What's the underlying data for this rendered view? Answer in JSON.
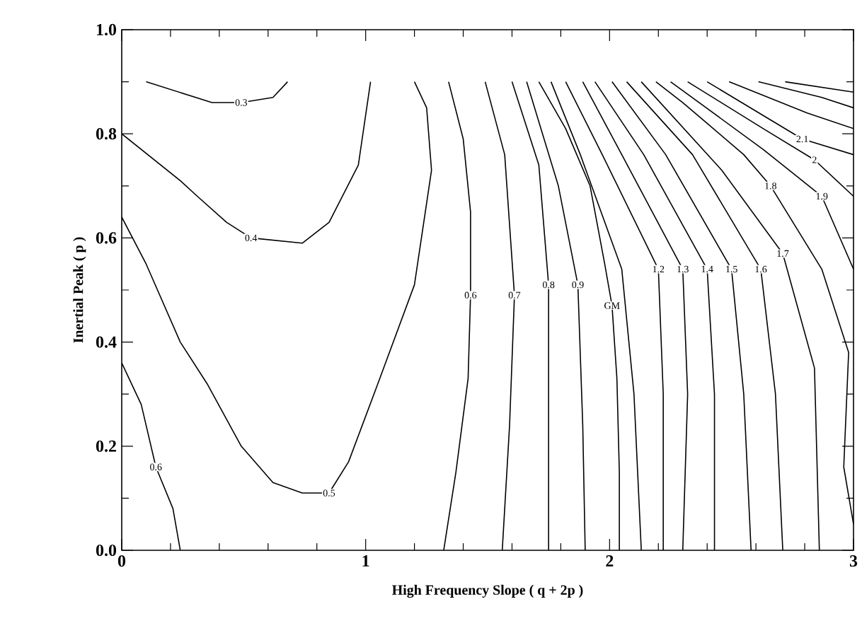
{
  "chart_data": {
    "type": "line",
    "xlabel": "High Frequency Slope ( q + 2p )",
    "ylabel": "Inertial Peak ( p )",
    "xlim": [
      0,
      3
    ],
    "ylim": [
      0,
      1
    ],
    "xticks": [
      0,
      1,
      2,
      3
    ],
    "yticks": [
      {
        "value": 0,
        "label": "0.0"
      },
      {
        "value": 0.2,
        "label": "0.2"
      },
      {
        "value": 0.4,
        "label": "0.4"
      },
      {
        "value": 0.6,
        "label": "0.6"
      },
      {
        "value": 0.8,
        "label": "0.8"
      },
      {
        "value": 1,
        "label": "1.0"
      }
    ],
    "grid": false,
    "legend": false,
    "marker": "none",
    "line_style": "solid",
    "series": [
      {
        "name": "0.3",
        "color": "#000000",
        "x": [
          0.1,
          0.37,
          0.49,
          0.62,
          0.68
        ],
        "values": [
          0.9,
          0.86,
          0.86,
          0.87,
          0.9
        ]
      },
      {
        "name": "0.4",
        "color": "#000000",
        "x": [
          0,
          0.24,
          0.31,
          0.43,
          0.53,
          0.74,
          0.85,
          0.97,
          1.02
        ],
        "values": [
          0.8,
          0.71,
          0.68,
          0.63,
          0.6,
          0.59,
          0.63,
          0.74,
          0.9
        ]
      },
      {
        "name": "0.5",
        "color": "#000000",
        "x": [
          0,
          0.1,
          0.24,
          0.35,
          0.49,
          0.62,
          0.74,
          0.85,
          0.93,
          1.05,
          1.2,
          1.27,
          1.25,
          1.2
        ],
        "values": [
          0.64,
          0.55,
          0.4,
          0.32,
          0.2,
          0.13,
          0.11,
          0.11,
          0.17,
          0.32,
          0.51,
          0.73,
          0.85,
          0.9
        ]
      },
      {
        "name": "0.6",
        "color": "#000000",
        "x": [
          0,
          0.08,
          0.14,
          0.21,
          0.24
        ],
        "values": [
          0.36,
          0.28,
          0.16,
          0.08,
          0
        ]
      },
      {
        "name": "0.6",
        "color": "#000000",
        "x": [
          1.34,
          1.4,
          1.43,
          1.43,
          1.42,
          1.37,
          1.32
        ],
        "values": [
          0.9,
          0.79,
          0.65,
          0.49,
          0.33,
          0.15,
          0
        ]
      },
      {
        "name": "0.7",
        "color": "#000000",
        "x": [
          1.49,
          1.57,
          1.61,
          1.59,
          1.56
        ],
        "values": [
          0.9,
          0.76,
          0.49,
          0.24,
          0
        ]
      },
      {
        "name": "0.8",
        "color": "#000000",
        "x": [
          1.6,
          1.71,
          1.75,
          1.75,
          1.75
        ],
        "values": [
          0.9,
          0.74,
          0.51,
          0.24,
          0
        ]
      },
      {
        "name": "0.9",
        "color": "#000000",
        "x": [
          1.66,
          1.79,
          1.87,
          1.89,
          1.9
        ],
        "values": [
          0.9,
          0.7,
          0.51,
          0.24,
          0
        ]
      },
      {
        "name": "GM",
        "color": "#000000",
        "x": [
          1.71,
          1.82,
          1.92,
          1.98,
          2.01,
          2.03,
          2.04,
          2.04
        ],
        "values": [
          0.9,
          0.81,
          0.7,
          0.55,
          0.47,
          0.33,
          0.15,
          0
        ]
      },
      {
        "color": "#000000",
        "x": [
          1.76,
          1.88,
          2.05,
          2.1,
          2.13
        ],
        "values": [
          0.9,
          0.76,
          0.54,
          0.3,
          0
        ]
      },
      {
        "name": "1.2",
        "color": "#000000",
        "x": [
          1.82,
          1.97,
          2.2,
          2.22,
          2.22
        ],
        "values": [
          0.9,
          0.76,
          0.54,
          0.3,
          0
        ]
      },
      {
        "name": "1.3",
        "color": "#000000",
        "x": [
          1.89,
          2.05,
          2.3,
          2.32,
          2.3
        ],
        "values": [
          0.9,
          0.76,
          0.54,
          0.3,
          0
        ]
      },
      {
        "name": "1.4",
        "color": "#000000",
        "x": [
          1.94,
          2.14,
          2.4,
          2.43,
          2.43
        ],
        "values": [
          0.9,
          0.76,
          0.54,
          0.3,
          0
        ]
      },
      {
        "name": "1.5",
        "color": "#000000",
        "x": [
          2.01,
          2.23,
          2.5,
          2.55,
          2.58
        ],
        "values": [
          0.9,
          0.76,
          0.54,
          0.3,
          0
        ]
      },
      {
        "name": "1.6",
        "color": "#000000",
        "x": [
          2.07,
          2.34,
          2.62,
          2.68,
          2.71
        ],
        "values": [
          0.9,
          0.76,
          0.54,
          0.3,
          0
        ]
      },
      {
        "name": "1.7",
        "color": "#000000",
        "x": [
          2.13,
          2.46,
          2.71,
          2.84,
          2.86
        ],
        "values": [
          0.9,
          0.73,
          0.57,
          0.35,
          0
        ]
      },
      {
        "name": "1.8",
        "color": "#000000",
        "x": [
          2.19,
          2.3,
          2.4,
          2.55,
          2.66,
          2.87,
          2.98,
          2.96,
          3.0
        ],
        "values": [
          0.9,
          0.86,
          0.82,
          0.76,
          0.7,
          0.54,
          0.38,
          0.16,
          0.05
        ]
      },
      {
        "name": "1.9",
        "color": "#000000",
        "x": [
          2.25,
          2.63,
          2.87,
          3.0
        ],
        "values": [
          0.9,
          0.77,
          0.68,
          0.54
        ]
      },
      {
        "name": "2",
        "color": "#000000",
        "x": [
          2.32,
          2.63,
          2.84,
          3.0
        ],
        "values": [
          0.9,
          0.81,
          0.75,
          0.68
        ]
      },
      {
        "name": "2.1",
        "color": "#000000",
        "x": [
          2.4,
          2.79,
          3.0
        ],
        "values": [
          0.9,
          0.79,
          0.76
        ]
      },
      {
        "color": "#000000",
        "x": [
          2.49,
          2.81,
          3.0
        ],
        "values": [
          0.9,
          0.84,
          0.81
        ]
      },
      {
        "color": "#000000",
        "x": [
          2.61,
          2.87,
          3.0
        ],
        "values": [
          0.9,
          0.87,
          0.85
        ]
      },
      {
        "color": "#000000",
        "x": [
          2.72,
          3.0
        ],
        "values": [
          0.9,
          0.88
        ]
      }
    ]
  }
}
